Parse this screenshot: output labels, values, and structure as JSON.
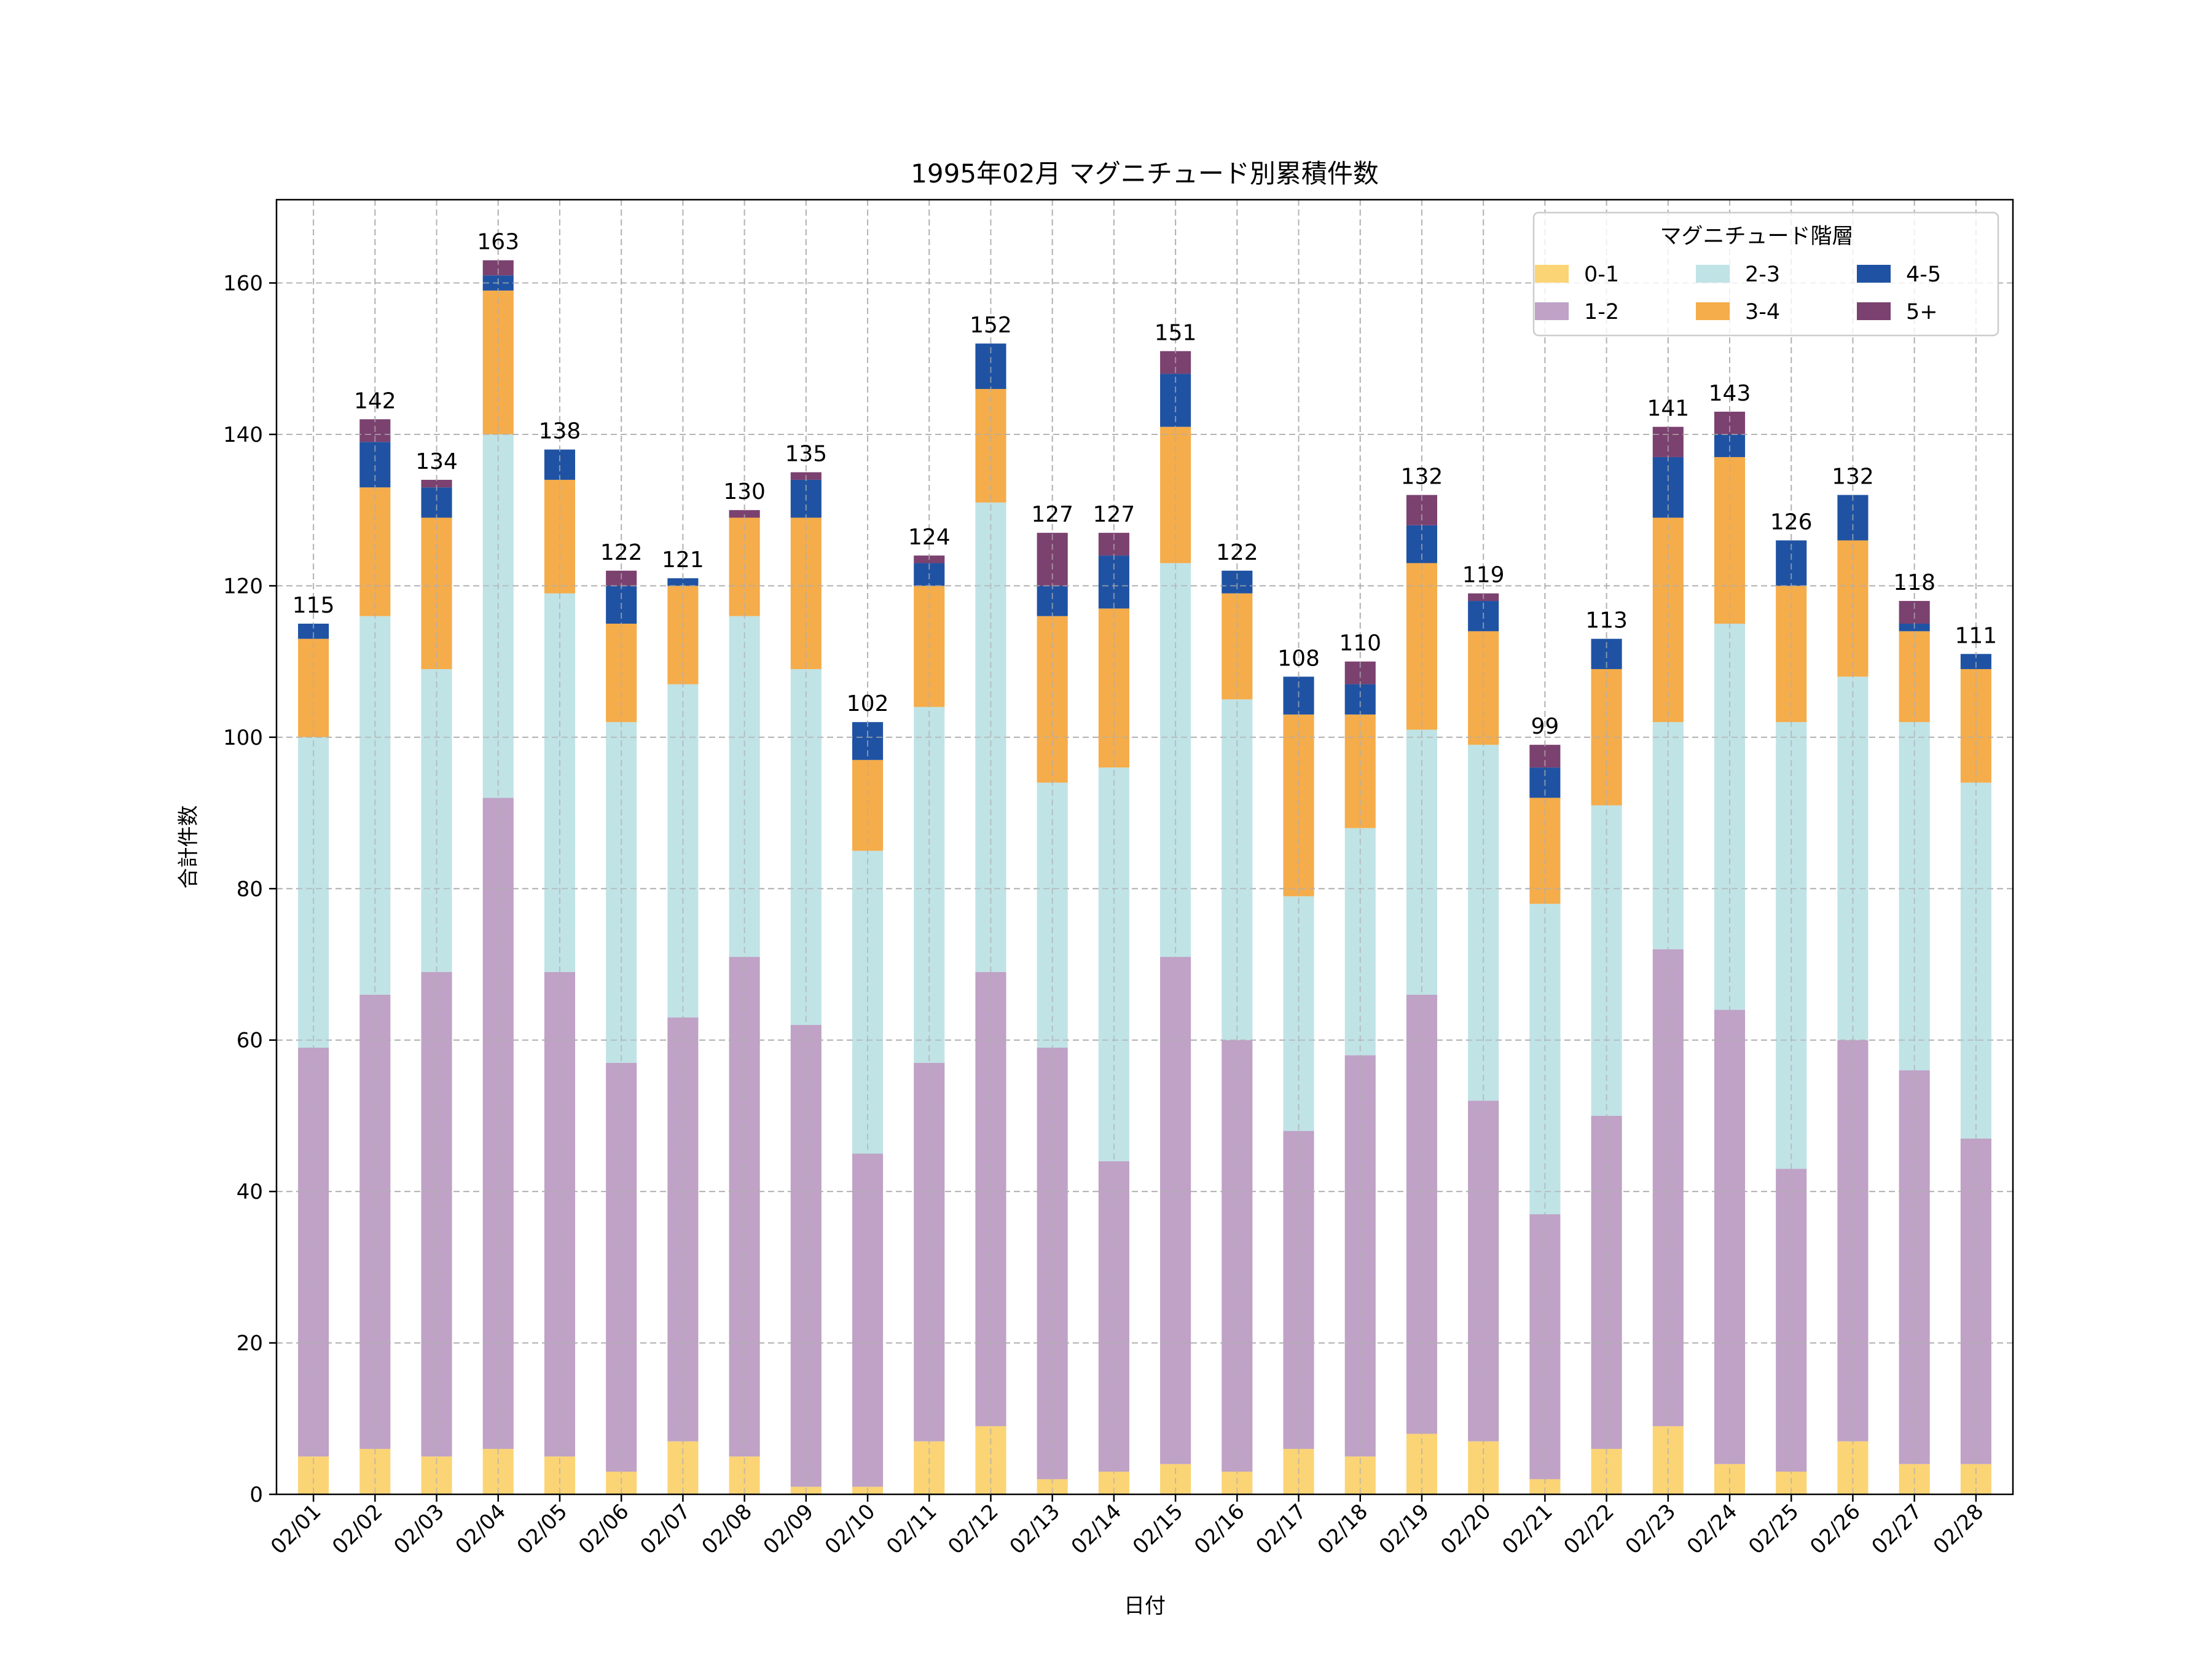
{
  "chart_data": {
    "type": "bar",
    "stacked": true,
    "title": "1995年02月 マグニチュード別累積件数",
    "xlabel": "日付",
    "ylabel": "合計件数",
    "ylim": [
      0,
      171
    ],
    "yticks": [
      0,
      20,
      40,
      60,
      80,
      100,
      120,
      140,
      160
    ],
    "grid": true,
    "legend": {
      "title": "マグニチュード階層",
      "placement": "top-right",
      "columns": 3
    },
    "categories": [
      "02/01",
      "02/02",
      "02/03",
      "02/04",
      "02/05",
      "02/06",
      "02/07",
      "02/08",
      "02/09",
      "02/10",
      "02/11",
      "02/12",
      "02/13",
      "02/14",
      "02/15",
      "02/16",
      "02/17",
      "02/18",
      "02/19",
      "02/20",
      "02/21",
      "02/22",
      "02/23",
      "02/24",
      "02/25",
      "02/26",
      "02/27",
      "02/28"
    ],
    "series": [
      {
        "name": "0-1",
        "color": "#fbd475",
        "values": [
          5,
          6,
          5,
          6,
          5,
          3,
          7,
          5,
          1,
          1,
          7,
          9,
          2,
          3,
          4,
          3,
          6,
          5,
          8,
          7,
          2,
          6,
          9,
          4,
          3,
          7,
          4,
          4
        ]
      },
      {
        "name": "1-2",
        "color": "#bfa2c6",
        "values": [
          54,
          60,
          64,
          86,
          64,
          54,
          56,
          66,
          61,
          44,
          50,
          60,
          57,
          41,
          67,
          57,
          42,
          53,
          58,
          45,
          35,
          44,
          63,
          60,
          40,
          53,
          52,
          43
        ]
      },
      {
        "name": "2-3",
        "color": "#c0e3e6",
        "values": [
          41,
          50,
          40,
          48,
          50,
          45,
          44,
          45,
          47,
          40,
          47,
          62,
          35,
          52,
          52,
          45,
          31,
          30,
          35,
          47,
          41,
          41,
          30,
          51,
          59,
          48,
          46,
          47
        ]
      },
      {
        "name": "3-4",
        "color": "#f5ac4a",
        "values": [
          13,
          17,
          20,
          19,
          15,
          13,
          13,
          13,
          20,
          12,
          16,
          15,
          22,
          21,
          18,
          14,
          24,
          15,
          22,
          15,
          14,
          18,
          27,
          22,
          18,
          18,
          12,
          15
        ]
      },
      {
        "name": "4-5",
        "color": "#1f52a2",
        "values": [
          2,
          6,
          4,
          2,
          4,
          5,
          1,
          0,
          5,
          5,
          3,
          6,
          4,
          7,
          7,
          3,
          5,
          4,
          5,
          4,
          4,
          4,
          8,
          3,
          6,
          6,
          1,
          2
        ]
      },
      {
        "name": "5+",
        "color": "#7b416f",
        "values": [
          0,
          3,
          1,
          2,
          0,
          2,
          0,
          1,
          1,
          0,
          1,
          0,
          7,
          3,
          3,
          0,
          0,
          3,
          4,
          1,
          3,
          0,
          4,
          3,
          0,
          0,
          3,
          0
        ]
      }
    ],
    "totals": [
      115,
      142,
      134,
      163,
      138,
      122,
      121,
      130,
      135,
      102,
      124,
      152,
      127,
      127,
      151,
      122,
      108,
      110,
      132,
      119,
      99,
      113,
      141,
      143,
      126,
      132,
      118,
      111
    ]
  }
}
